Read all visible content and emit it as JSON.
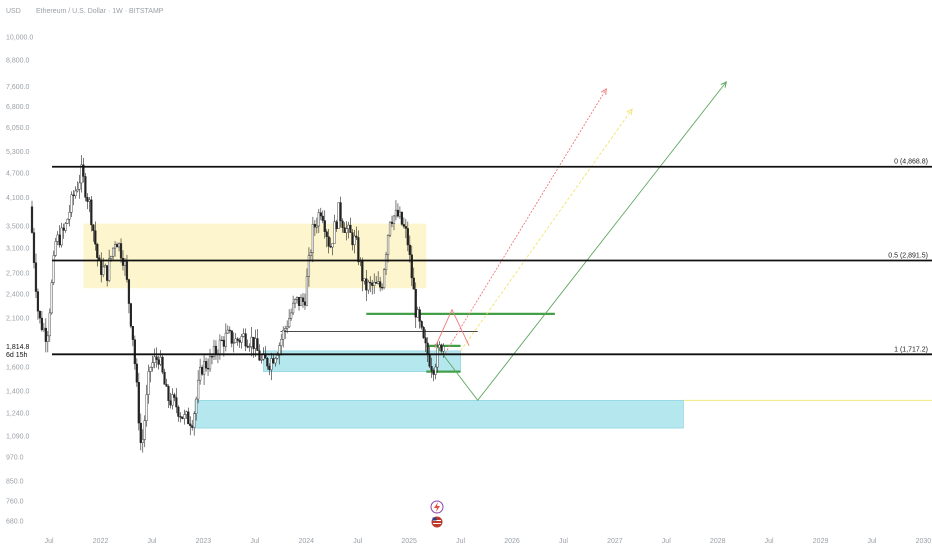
{
  "header": {
    "currency": "USD",
    "title": "Ethereum / U.S. Dollar · 1W · BITSTAMP"
  },
  "price_axis": {
    "labels": [
      {
        "text": "10,000.0",
        "value": 10000
      },
      {
        "text": "8,800.0",
        "value": 8800
      },
      {
        "text": "7,600.0",
        "value": 7600
      },
      {
        "text": "6,800.0",
        "value": 6800
      },
      {
        "text": "6,050.0",
        "value": 6050
      },
      {
        "text": "5,300.0",
        "value": 5300
      },
      {
        "text": "4,700.0",
        "value": 4700
      },
      {
        "text": "4,100.0",
        "value": 4100
      },
      {
        "text": "3,500.0",
        "value": 3500
      },
      {
        "text": "3,100.0",
        "value": 3100
      },
      {
        "text": "2,700.0",
        "value": 2700
      },
      {
        "text": "2,400.0",
        "value": 2400
      },
      {
        "text": "2,100.0",
        "value": 2100
      },
      {
        "text": "1,600.0",
        "value": 1600
      },
      {
        "text": "1,400.0",
        "value": 1400
      },
      {
        "text": "1,240.0",
        "value": 1240
      },
      {
        "text": "1,090.0",
        "value": 1090
      },
      {
        "text": "970.0",
        "value": 970
      },
      {
        "text": "850.0",
        "value": 850
      },
      {
        "text": "760.0",
        "value": 760
      },
      {
        "text": "680.0",
        "value": 680
      }
    ],
    "current_price": "1,814.8",
    "countdown": "6d 15h"
  },
  "time_axis": {
    "labels": [
      "Jul",
      "2022",
      "Jul",
      "2023",
      "Jul",
      "2024",
      "Jul",
      "2025",
      "Jul",
      "2026",
      "Jul",
      "2027",
      "Jul",
      "2028",
      "Jul",
      "2029",
      "Jul",
      "2030"
    ]
  },
  "chart_data": {
    "type": "candlestick",
    "title": "Ethereum / U.S. Dollar · 1W · BITSTAMP",
    "y_scale": "log",
    "ylim": [
      640,
      11000
    ],
    "xlim": [
      "2021-05",
      "2030-02"
    ],
    "ohlc_anchor_points": [
      {
        "date": "2021-05",
        "price": 3900
      },
      {
        "date": "2021-06",
        "price": 2100
      },
      {
        "date": "2021-07",
        "price": 1900
      },
      {
        "date": "2021-08",
        "price": 3200
      },
      {
        "date": "2021-09",
        "price": 3400
      },
      {
        "date": "2021-10",
        "price": 4100
      },
      {
        "date": "2021-11",
        "price": 4700
      },
      {
        "date": "2021-12",
        "price": 3900
      },
      {
        "date": "2022-01",
        "price": 2800
      },
      {
        "date": "2022-02",
        "price": 2700
      },
      {
        "date": "2022-03",
        "price": 3300
      },
      {
        "date": "2022-04",
        "price": 2900
      },
      {
        "date": "2022-05",
        "price": 1900
      },
      {
        "date": "2022-06",
        "price": 1000
      },
      {
        "date": "2022-07",
        "price": 1600
      },
      {
        "date": "2022-08",
        "price": 1700
      },
      {
        "date": "2022-09",
        "price": 1350
      },
      {
        "date": "2022-10",
        "price": 1300
      },
      {
        "date": "2022-11",
        "price": 1200
      },
      {
        "date": "2022-12",
        "price": 1200
      },
      {
        "date": "2023-01",
        "price": 1600
      },
      {
        "date": "2023-02",
        "price": 1650
      },
      {
        "date": "2023-03",
        "price": 1800
      },
      {
        "date": "2023-04",
        "price": 1900
      },
      {
        "date": "2023-05",
        "price": 1850
      },
      {
        "date": "2023-06",
        "price": 1900
      },
      {
        "date": "2023-07",
        "price": 1850
      },
      {
        "date": "2023-08",
        "price": 1650
      },
      {
        "date": "2023-09",
        "price": 1650
      },
      {
        "date": "2023-10",
        "price": 1800
      },
      {
        "date": "2023-11",
        "price": 2050
      },
      {
        "date": "2023-12",
        "price": 2300
      },
      {
        "date": "2024-01",
        "price": 2300
      },
      {
        "date": "2024-02",
        "price": 3400
      },
      {
        "date": "2024-03",
        "price": 3900
      },
      {
        "date": "2024-04",
        "price": 3100
      },
      {
        "date": "2024-05",
        "price": 3800
      },
      {
        "date": "2024-06",
        "price": 3400
      },
      {
        "date": "2024-07",
        "price": 3200
      },
      {
        "date": "2024-08",
        "price": 2500
      },
      {
        "date": "2024-09",
        "price": 2500
      },
      {
        "date": "2024-10",
        "price": 2500
      },
      {
        "date": "2024-11",
        "price": 3700
      },
      {
        "date": "2024-12",
        "price": 3700
      },
      {
        "date": "2025-01",
        "price": 3300
      },
      {
        "date": "2025-02",
        "price": 2200
      },
      {
        "date": "2025-03",
        "price": 1800
      },
      {
        "date": "2025-04",
        "price": 1600
      },
      {
        "date": "2025-05",
        "price": 1815
      }
    ],
    "fib_levels": [
      {
        "label": "0 (4,868.8)",
        "price": 4868.8
      },
      {
        "label": "0.5 (2,891.5)",
        "price": 2891.5
      },
      {
        "label": "1 (1,717.2)",
        "price": 1717.2
      }
    ],
    "zones": [
      {
        "name": "supply-zone",
        "color": "#fdf3c4",
        "x_start": "2021-11",
        "x_end": "2025-03",
        "price_low": 2480,
        "price_high": 3550
      },
      {
        "name": "demand-zone-upper",
        "color": "#a8e3ec",
        "x_start": "2023-08",
        "x_end": "2025-07",
        "price_low": 1560,
        "price_high": 1750
      },
      {
        "name": "demand-zone-lower",
        "color": "#a8e3ec",
        "x_start": "2022-12",
        "x_end": "2027-09",
        "price_low": 1140,
        "price_high": 1330
      }
    ],
    "horizontal_lines": [
      {
        "name": "green-level-upper",
        "color": "#43a047",
        "x_start": "2024-08",
        "x_end": "2026-06",
        "price": 2150
      },
      {
        "name": "green-level-mid",
        "color": "#43a047",
        "x_start": "2025-03",
        "x_end": "2025-07",
        "price": 1800
      },
      {
        "name": "green-level-low",
        "color": "#43a047",
        "x_start": "2025-03",
        "x_end": "2025-07",
        "price": 1560
      },
      {
        "name": "thin-black-level",
        "color": "#333333",
        "x_start": "2023-10",
        "x_end": "2025-09",
        "price": 1950
      },
      {
        "name": "yellow-level",
        "color": "#f2e36a",
        "x_start": "2027-09",
        "x_end": "2030-02",
        "price": 1330
      }
    ],
    "projections": [
      {
        "name": "red-projection",
        "color": "#ef7a7a",
        "points": [
          {
            "date": "2025-05",
            "price": 1700
          },
          {
            "date": "2026-12",
            "price": 7500
          }
        ]
      },
      {
        "name": "yellow-projection",
        "color": "#f2e36a",
        "points": [
          {
            "date": "2025-07",
            "price": 1750
          },
          {
            "date": "2027-03",
            "price": 6700
          }
        ]
      },
      {
        "name": "green-projection",
        "color": "#5fa65f",
        "points": [
          {
            "date": "2025-04",
            "price": 1820
          },
          {
            "date": "2025-09",
            "price": 1330
          },
          {
            "date": "2028-02",
            "price": 7800
          }
        ]
      },
      {
        "name": "red-path-short",
        "color": "#ef7a7a",
        "points": [
          {
            "date": "2025-04",
            "price": 1780
          },
          {
            "date": "2025-06",
            "price": 2200
          },
          {
            "date": "2025-08",
            "price": 1800
          }
        ]
      }
    ]
  }
}
